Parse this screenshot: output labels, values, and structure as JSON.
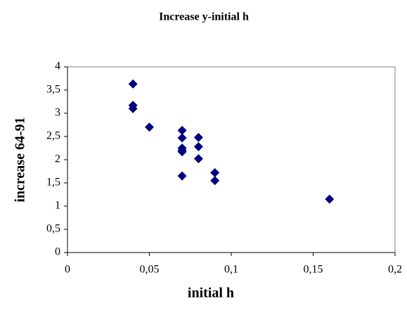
{
  "chart_data": {
    "type": "scatter",
    "title": "Increase y-initial h",
    "x_label": "initial h",
    "y_label": "increase 64-91",
    "x": [
      0.04,
      0.04,
      0.04,
      0.05,
      0.07,
      0.07,
      0.07,
      0.07,
      0.07,
      0.07,
      0.08,
      0.08,
      0.08,
      0.09,
      0.09,
      0.16
    ],
    "values": [
      3.63,
      3.17,
      3.1,
      2.7,
      2.63,
      2.47,
      2.25,
      2.2,
      2.17,
      1.65,
      2.48,
      2.28,
      2.02,
      1.72,
      1.55,
      1.15
    ],
    "color": "#000080",
    "xlim": [
      0,
      0.2
    ],
    "xticks": [
      0,
      {
        "value": 0.05,
        "label": "0,05"
      },
      {
        "value": 0.1,
        "label": "0,1"
      },
      {
        "value": 0.15,
        "label": "0,15"
      },
      {
        "value": 0.2,
        "label": "0,2"
      }
    ],
    "ylim": [
      0,
      4
    ],
    "yticks": [
      0,
      {
        "value": 0.5,
        "label": "0,5"
      },
      1,
      {
        "value": 1.5,
        "label": "1,5"
      },
      2,
      {
        "value": 2.5,
        "label": "2,5"
      },
      3,
      {
        "value": 3.5,
        "label": "3,5"
      },
      4
    ],
    "grid": false
  }
}
